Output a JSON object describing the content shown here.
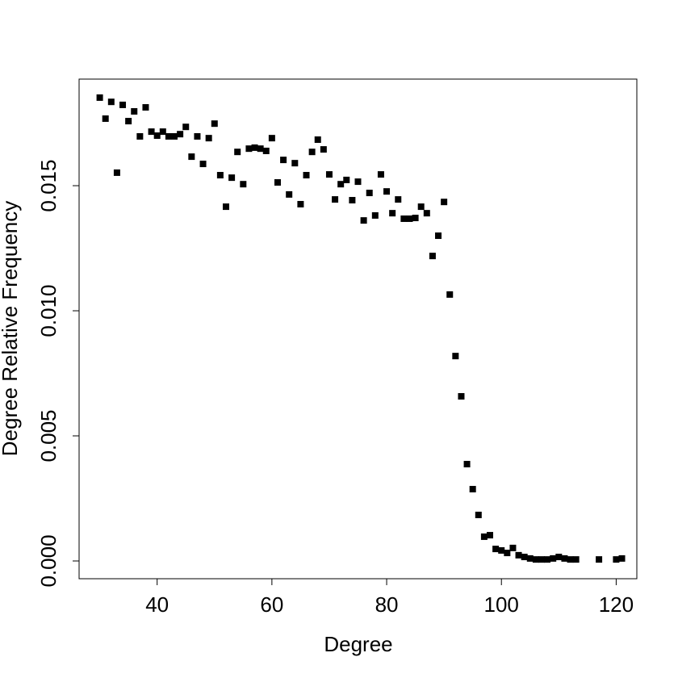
{
  "chart_data": {
    "type": "scatter",
    "xlabel": "Degree",
    "ylabel": "Degree Relative Frequency",
    "color": "#000000",
    "x": [
      30,
      31,
      32,
      33,
      34,
      35,
      36,
      37,
      38,
      39,
      40,
      41,
      42,
      43,
      44,
      45,
      46,
      47,
      48,
      49,
      50,
      51,
      52,
      53,
      54,
      55,
      56,
      57,
      58,
      59,
      60,
      61,
      62,
      63,
      64,
      65,
      66,
      67,
      68,
      69,
      70,
      71,
      72,
      73,
      74,
      75,
      76,
      77,
      78,
      79,
      80,
      81,
      82,
      83,
      84,
      85,
      86,
      87,
      88,
      89,
      90,
      91,
      92,
      93,
      94,
      95,
      96,
      97,
      98,
      99,
      100,
      101,
      102,
      103,
      104,
      105,
      106,
      107,
      108,
      109,
      110,
      111,
      112,
      113,
      117,
      120,
      121
    ],
    "values": [
      0.01852,
      0.01768,
      0.01835,
      0.01552,
      0.01823,
      0.01758,
      0.01797,
      0.01697,
      0.01813,
      0.01716,
      0.017,
      0.01716,
      0.01697,
      0.01697,
      0.01706,
      0.01735,
      0.01616,
      0.01697,
      0.01587,
      0.0169,
      0.01748,
      0.01542,
      0.01416,
      0.01532,
      0.01635,
      0.01506,
      0.01648,
      0.01652,
      0.01648,
      0.01639,
      0.0169,
      0.01513,
      0.01603,
      0.01465,
      0.0159,
      0.01426,
      0.01542,
      0.01635,
      0.01684,
      0.01645,
      0.01545,
      0.01445,
      0.01506,
      0.01523,
      0.01442,
      0.01516,
      0.01361,
      0.01471,
      0.01381,
      0.01545,
      0.01477,
      0.0139,
      0.01445,
      0.01368,
      0.01368,
      0.01371,
      0.01416,
      0.0139,
      0.01219,
      0.013,
      0.01435,
      0.01065,
      0.00819,
      0.00658,
      0.00387,
      0.00287,
      0.00184,
      0.00097,
      0.00103,
      0.00048,
      0.00042,
      0.00032,
      0.00052,
      0.00023,
      0.00016,
      0.0001,
      6e-05,
      6e-05,
      6e-05,
      0.0001,
      0.00016,
      0.0001,
      6e-05,
      6e-05,
      6e-05,
      6e-05,
      0.0001
    ],
    "xlim": [
      26.4,
      123.6
    ],
    "ylim": [
      -0.00071,
      0.01926
    ],
    "xticks": [
      40,
      60,
      80,
      100,
      120
    ],
    "yticks": [
      {
        "value": 0,
        "label": "0.000"
      },
      {
        "value": 0.005,
        "label": "0.005"
      },
      {
        "value": 0.01,
        "label": "0.010"
      },
      {
        "value": 0.015,
        "label": "0.015"
      }
    ]
  }
}
